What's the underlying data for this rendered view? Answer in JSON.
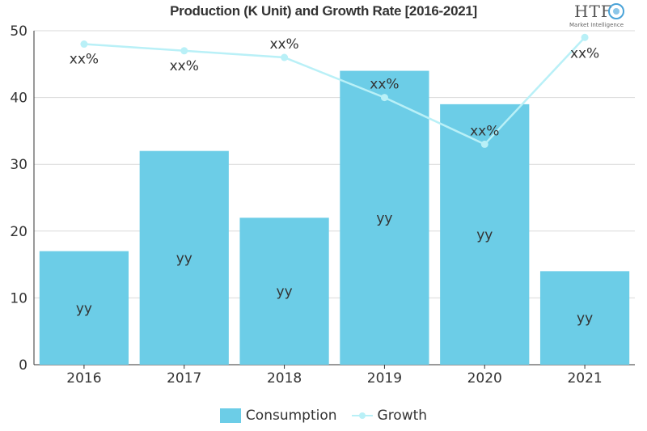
{
  "chart_data": {
    "type": "bar",
    "title": "Production (K Unit) and Growth Rate [2016-2021]",
    "categories": [
      "2016",
      "2017",
      "2018",
      "2019",
      "2020",
      "2021"
    ],
    "ylim": [
      0,
      50
    ],
    "yticks": [
      0,
      10,
      20,
      30,
      40,
      50
    ],
    "grid": true,
    "legend_position": "bottom",
    "series": [
      {
        "name": "Consumption",
        "type": "bar",
        "color": "#6ccde7",
        "values": [
          17,
          32,
          22,
          44,
          39,
          14
        ],
        "data_labels": [
          "yy",
          "yy",
          "yy",
          "yy",
          "yy",
          "yy"
        ]
      },
      {
        "name": "Growth",
        "type": "line",
        "color": "#b9f0f7",
        "values": [
          48,
          47,
          46,
          40,
          33,
          49
        ],
        "data_labels": [
          "xx%",
          "xx%",
          "xx%",
          "xx%",
          "xx%",
          "xx%"
        ]
      }
    ]
  },
  "logo": {
    "text": "HTF",
    "subtitle": "Market Intelligence"
  }
}
